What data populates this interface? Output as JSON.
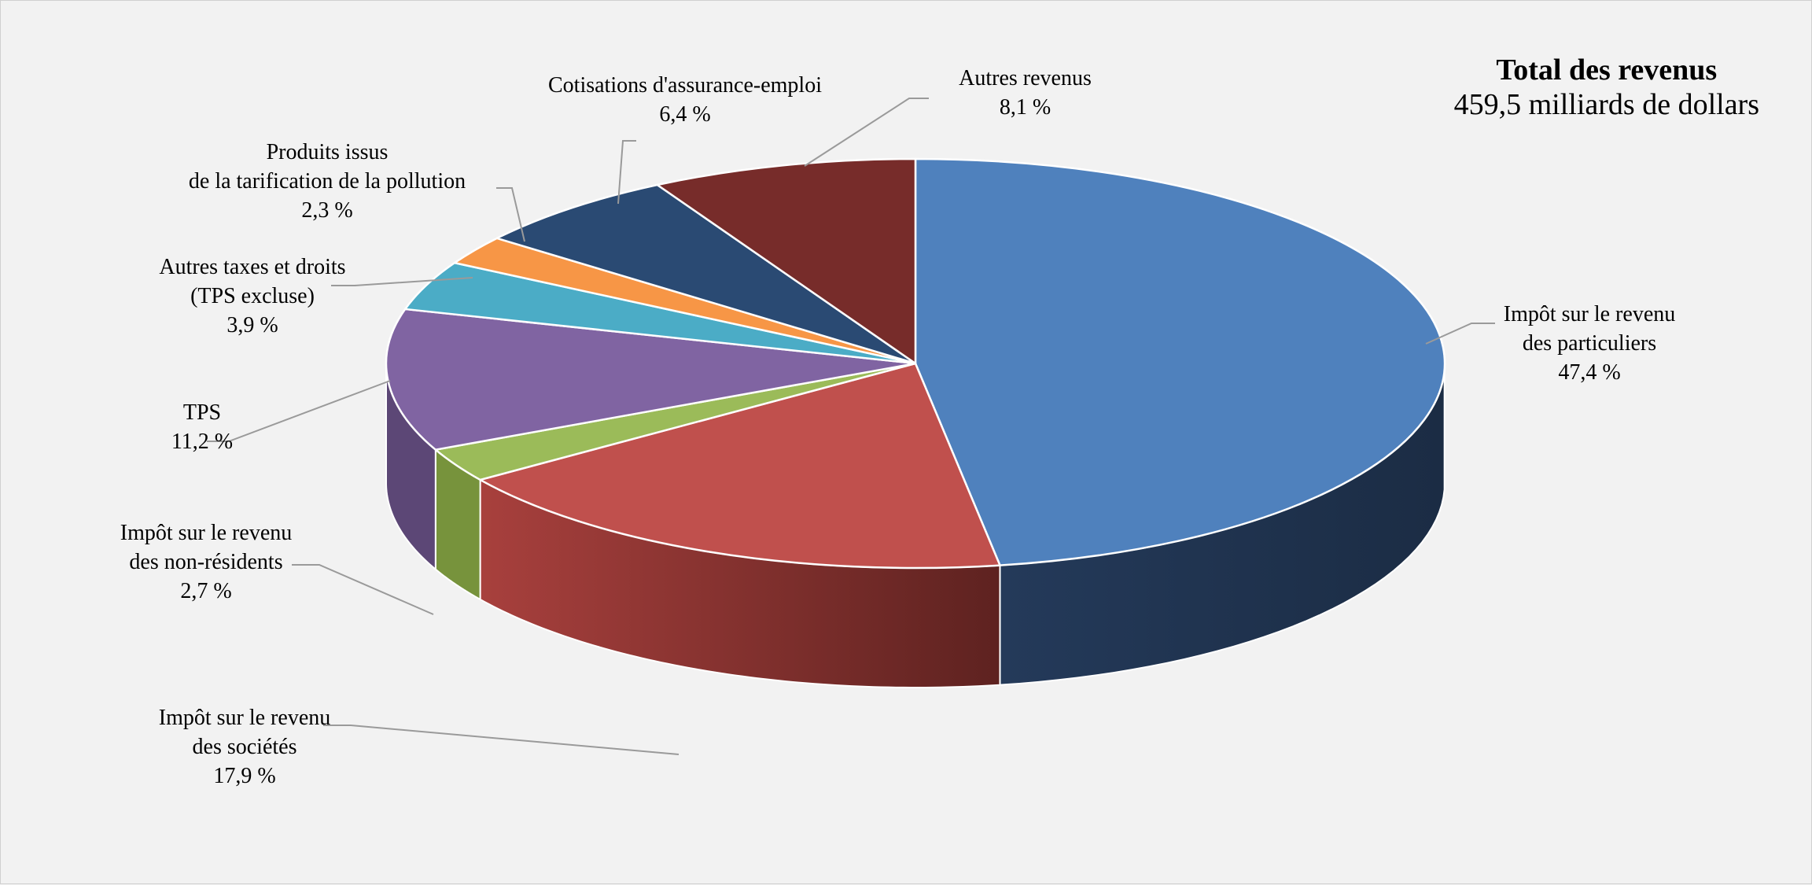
{
  "chart_data": {
    "type": "pie",
    "title": "Total des revenus",
    "subtitle": "459,5 milliards de dollars",
    "slices": [
      {
        "key": "personal",
        "label_lines": [
          "Impôt sur le revenu",
          "des particuliers"
        ],
        "value": 47.4,
        "value_label": "47,4 %",
        "color": "#4f81bd",
        "side_color": "#1f3350"
      },
      {
        "key": "corporate",
        "label_lines": [
          "Impôt sur le revenu",
          "des sociétés"
        ],
        "value": 17.9,
        "value_label": "17,9 %",
        "color": "#c0504d",
        "side_color": "#8e3532"
      },
      {
        "key": "nonresident",
        "label_lines": [
          "Impôt sur le revenu",
          "des non-résidents"
        ],
        "value": 2.7,
        "value_label": "2,7 %",
        "color": "#9bbb59",
        "side_color": "#77933c"
      },
      {
        "key": "gst",
        "label_lines": [
          "TPS"
        ],
        "value": 11.2,
        "value_label": "11,2 %",
        "color": "#8064a2",
        "side_color": "#5c4776"
      },
      {
        "key": "othertaxes",
        "label_lines": [
          "Autres taxes et droits",
          "(TPS excluse)"
        ],
        "value": 3.9,
        "value_label": "3,9 %",
        "color": "#4bacc6",
        "side_color": "#31859c"
      },
      {
        "key": "pollution",
        "label_lines": [
          "Produits issus",
          "de la tarification de la pollution"
        ],
        "value": 2.3,
        "value_label": "2,3 %",
        "color": "#f79646",
        "side_color": "#c0702a"
      },
      {
        "key": "ei",
        "label_lines": [
          "Cotisations d'assurance-emploi"
        ],
        "value": 6.4,
        "value_label": "6,4 %",
        "color": "#2a4a73",
        "side_color": "#1a2f4a"
      },
      {
        "key": "other",
        "label_lines": [
          "Autres revenus"
        ],
        "value": 8.1,
        "value_label": "8,1 %",
        "color": "#772c2a",
        "side_color": "#4f1c1b"
      }
    ],
    "legend": "none"
  }
}
